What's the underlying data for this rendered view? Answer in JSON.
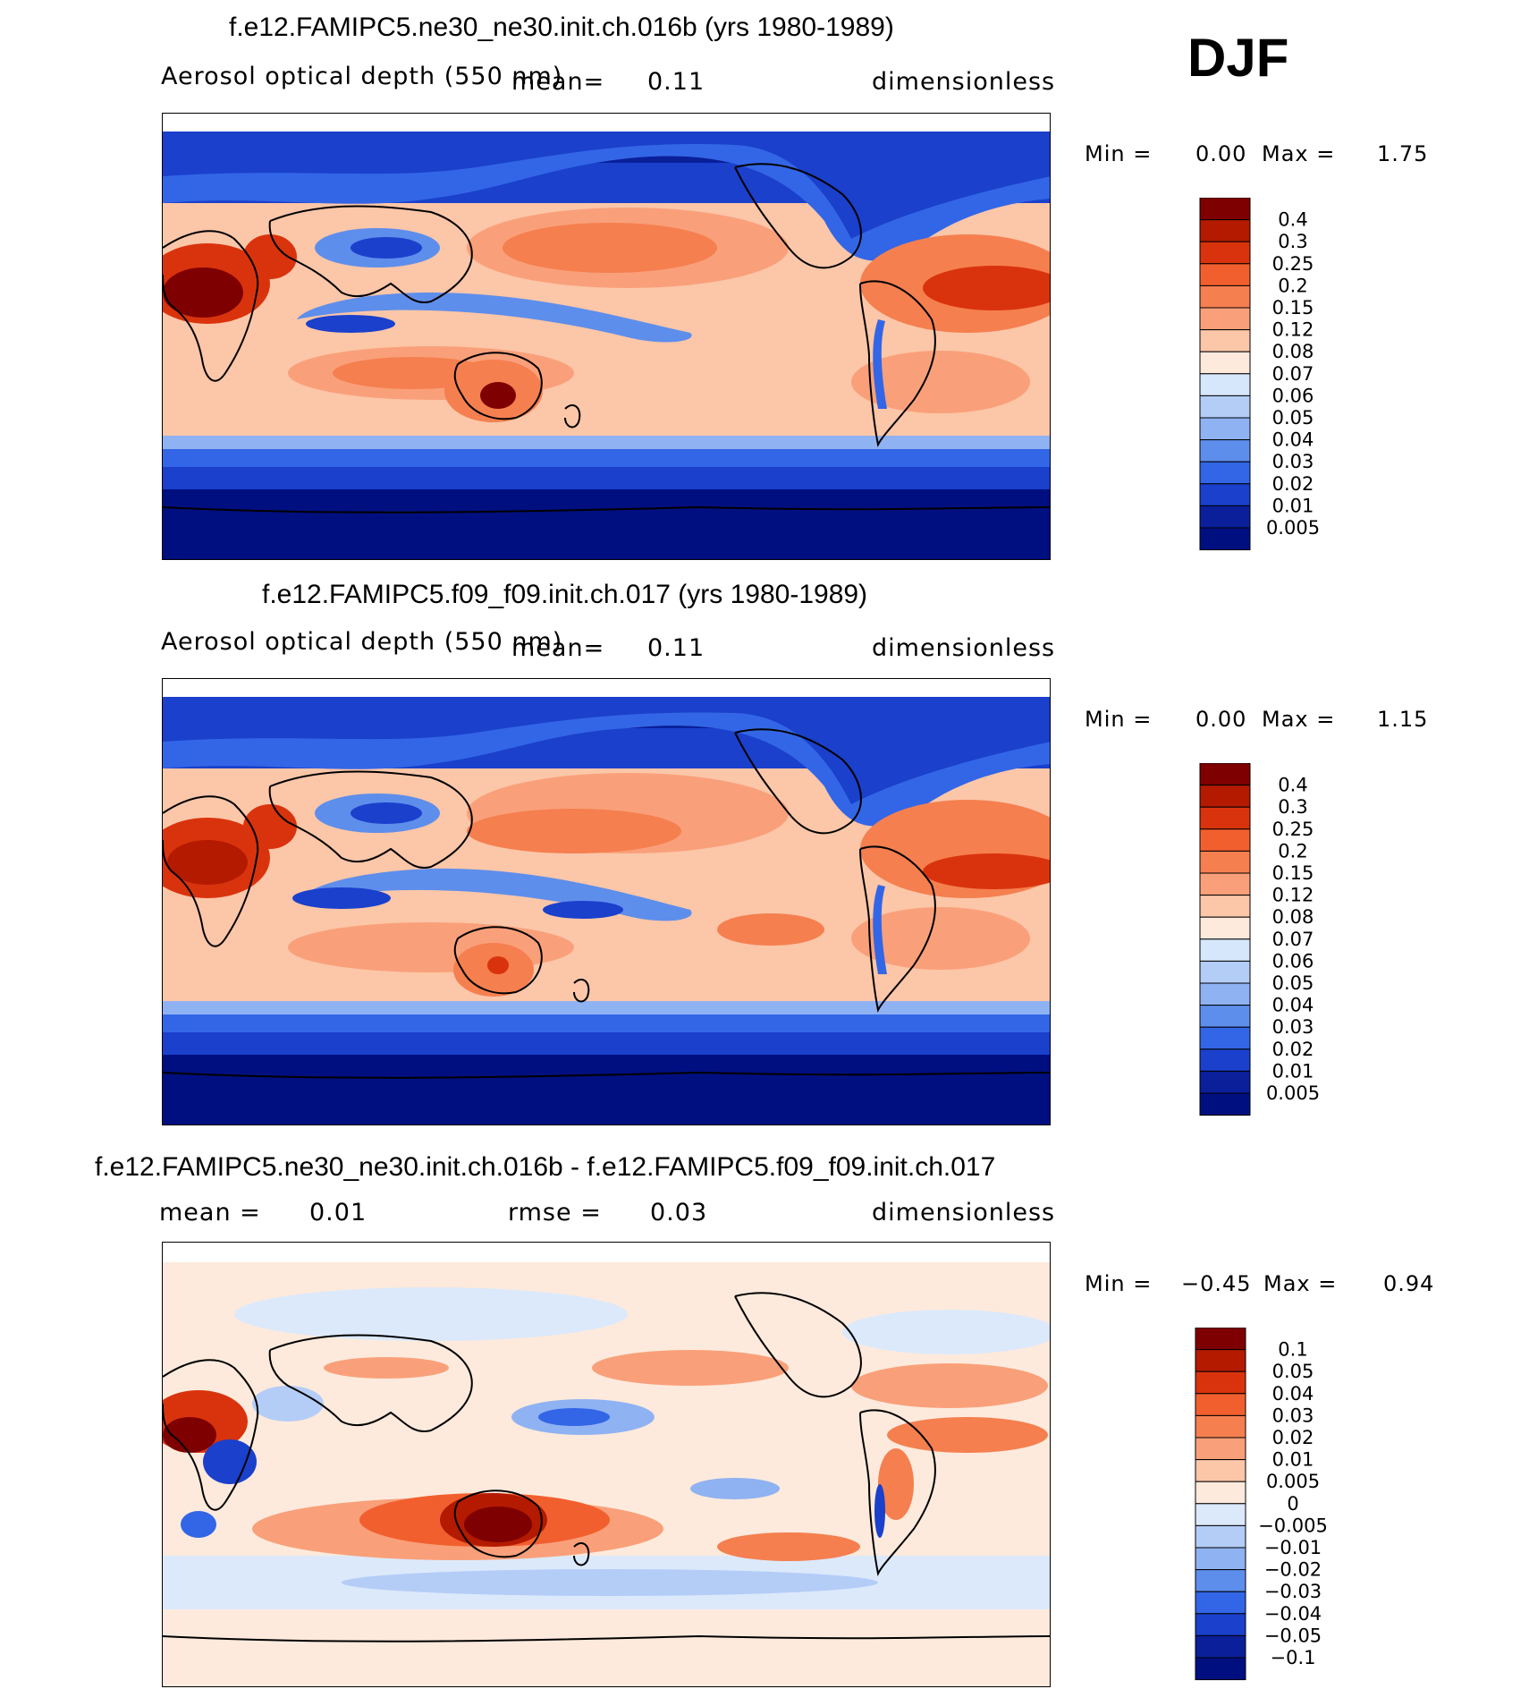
{
  "season": "DJF",
  "panels": [
    {
      "title": "f.e12.FAMIPC5.ne30_ne30.init.ch.016b (yrs 1980-1989)",
      "left_label": "Aerosol optical depth (550 nm)",
      "mean_label": "mean=",
      "mean_value": "0.11",
      "units": "dimensionless",
      "minmax": {
        "min_label": "Min =",
        "min_value": "0.00",
        "max_label": "Max =",
        "max_value": "1.75"
      },
      "colorbar": [
        "0.4",
        "0.3",
        "0.25",
        "0.2",
        "0.15",
        "0.12",
        "0.08",
        "0.07",
        "0.06",
        "0.05",
        "0.04",
        "0.03",
        "0.02",
        "0.01",
        "0.005"
      ]
    },
    {
      "title": "f.e12.FAMIPC5.f09_f09.init.ch.017 (yrs 1980-1989)",
      "left_label": "Aerosol optical depth (550 nm)",
      "mean_label": "mean=",
      "mean_value": "0.11",
      "units": "dimensionless",
      "minmax": {
        "min_label": "Min =",
        "min_value": "0.00",
        "max_label": "Max =",
        "max_value": "1.15"
      },
      "colorbar": [
        "0.4",
        "0.3",
        "0.25",
        "0.2",
        "0.15",
        "0.12",
        "0.08",
        "0.07",
        "0.06",
        "0.05",
        "0.04",
        "0.03",
        "0.02",
        "0.01",
        "0.005"
      ]
    },
    {
      "title": "f.e12.FAMIPC5.ne30_ne30.init.ch.016b - f.e12.FAMIPC5.f09_f09.init.ch.017",
      "mean_label": "mean =",
      "mean_value": "0.01",
      "rmse_label": "rmse =",
      "rmse_value": "0.03",
      "units": "dimensionless",
      "minmax": {
        "min_label": "Min =",
        "min_value": "−0.45",
        "max_label": "Max =",
        "max_value": "0.94"
      },
      "colorbar": [
        "0.1",
        "0.05",
        "0.04",
        "0.03",
        "0.02",
        "0.01",
        "0.005",
        "0",
        "−0.005",
        "−0.01",
        "−0.02",
        "−0.03",
        "−0.04",
        "−0.05",
        "−0.1"
      ]
    }
  ],
  "colors": {
    "abs_scale": [
      "#7f0000",
      "#b31a00",
      "#d9330d",
      "#f25f2e",
      "#f57f4f",
      "#f9a07a",
      "#fcc6a8",
      "#fdeadc",
      "#d6e6fb",
      "#b4cdf7",
      "#8fb2f2",
      "#5e8eeb",
      "#3366e6",
      "#1a40cc",
      "#0a1f99",
      "#000f80"
    ],
    "diff_scale": [
      "#7f0000",
      "#b31a00",
      "#d9330d",
      "#f25f2e",
      "#f57f4f",
      "#f9a07a",
      "#fcc6a8",
      "#fdeadc",
      "#dce9fb",
      "#b4cdf7",
      "#8fb2f2",
      "#5e8eeb",
      "#3366e6",
      "#1a40cc",
      "#0a1f99",
      "#000f80"
    ]
  },
  "chart_data": [
    {
      "type": "heatmap",
      "title": "f.e12.FAMIPC5.ne30_ne30.init.ch.016b (yrs 1980-1989)",
      "variable": "Aerosol optical depth (550 nm)",
      "units": "dimensionless",
      "mean": 0.11,
      "min": 0.0,
      "max": 1.75,
      "levels": [
        0.005,
        0.01,
        0.02,
        0.03,
        0.04,
        0.05,
        0.06,
        0.07,
        0.08,
        0.12,
        0.15,
        0.2,
        0.25,
        0.3,
        0.4
      ]
    },
    {
      "type": "heatmap",
      "title": "f.e12.FAMIPC5.f09_f09.init.ch.017 (yrs 1980-1989)",
      "variable": "Aerosol optical depth (550 nm)",
      "units": "dimensionless",
      "mean": 0.11,
      "min": 0.0,
      "max": 1.15,
      "levels": [
        0.005,
        0.01,
        0.02,
        0.03,
        0.04,
        0.05,
        0.06,
        0.07,
        0.08,
        0.12,
        0.15,
        0.2,
        0.25,
        0.3,
        0.4
      ]
    },
    {
      "type": "heatmap",
      "title": "f.e12.FAMIPC5.ne30_ne30.init.ch.016b - f.e12.FAMIPC5.f09_f09.init.ch.017",
      "units": "dimensionless",
      "mean": 0.01,
      "rmse": 0.03,
      "min": -0.45,
      "max": 0.94,
      "levels": [
        -0.1,
        -0.05,
        -0.04,
        -0.03,
        -0.02,
        -0.01,
        -0.005,
        0,
        0.005,
        0.01,
        0.02,
        0.03,
        0.04,
        0.05,
        0.1
      ]
    }
  ]
}
